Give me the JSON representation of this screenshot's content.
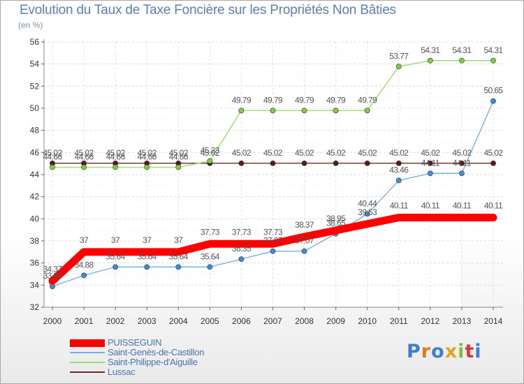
{
  "chart_data": {
    "type": "line",
    "title": "Evolution du Taux de Taxe Foncière sur les Propriétés Non Bâties",
    "ylabel": "(en %)",
    "xlabel": "",
    "categories": [
      "2000",
      "2001",
      "2002",
      "2003",
      "2004",
      "2005",
      "2006",
      "2007",
      "2008",
      "2009",
      "2010",
      "2011",
      "2012",
      "2013",
      "2014"
    ],
    "ylim": [
      32,
      56
    ],
    "yticks": [
      32,
      34,
      36,
      38,
      40,
      42,
      44,
      46,
      48,
      50,
      52,
      54,
      56
    ],
    "grid": true,
    "legend_position": "bottom-left",
    "series": [
      {
        "name": "PUISSEGUIN",
        "color": "#ff0000",
        "values": [
          34.37,
          37,
          37,
          37,
          37,
          37.73,
          37.73,
          37.73,
          38.37,
          38.95,
          39.53,
          40.11,
          40.11,
          40.11,
          40.11
        ],
        "labels": [
          "34.37",
          "37",
          "37",
          "37",
          "37",
          "37.73",
          "37.73",
          "37.73",
          "38.37",
          "38.95",
          "39.53",
          "40.11",
          "40.11",
          "40.11",
          "40.11"
        ]
      },
      {
        "name": "Saint-Genès-de-Castillon",
        "color": "#3b8dd8",
        "line_color": "#7ab0e0",
        "values": [
          33.88,
          34.88,
          35.64,
          35.64,
          35.64,
          35.64,
          36.35,
          37.07,
          37.07,
          38.65,
          40.44,
          43.46,
          44.11,
          44.11,
          50.65
        ],
        "labels": [
          "33.88",
          "34.88",
          "35.64",
          "35.64",
          "35.64",
          "35.64",
          "36.35",
          "37.07",
          "37.07",
          "38.65",
          "40.44",
          "43.46",
          "44.11",
          "44.11",
          "50.65"
        ]
      },
      {
        "name": "Saint-Philippe-d'Aiguille",
        "color": "#7fcf3a",
        "line_color": "#9fdc70",
        "values": [
          44.66,
          44.66,
          44.66,
          44.66,
          44.66,
          45.23,
          49.79,
          49.79,
          49.79,
          49.79,
          49.79,
          53.77,
          54.31,
          54.31,
          54.31
        ],
        "labels": [
          "44.66",
          "44.66",
          "44.66",
          "44.66",
          "44.66",
          "45.23",
          "49.79",
          "49.79",
          "49.79",
          "49.79",
          "49.79",
          "53.77",
          "54.31",
          "54.31",
          "54.31"
        ]
      },
      {
        "name": "Lussac",
        "color": "#5a1a1a",
        "line_color": "#6b2a2a",
        "values": [
          45.02,
          45.02,
          45.02,
          45.02,
          45.02,
          45.02,
          45.02,
          45.02,
          45.02,
          45.02,
          45.02,
          45.02,
          45.02,
          45.02,
          45.02
        ],
        "labels": [
          "45.02",
          "45.02",
          "45.02",
          "45.02",
          "45.02",
          "45.02",
          "45.02",
          "45.02",
          "45.02",
          "45.02",
          "45.02",
          "45.02",
          "45.02",
          "45.02",
          "45.02"
        ]
      }
    ]
  },
  "legend": {
    "items": [
      {
        "label": "PUISSEGUIN",
        "color": "#ff0000"
      },
      {
        "label": "Saint-Genès-de-Castillon",
        "color": "#7ab0e0"
      },
      {
        "label": "Saint-Philippe-d'Aiguille",
        "color": "#9fdc70"
      },
      {
        "label": "Lussac",
        "color": "#6b2a2a"
      }
    ]
  },
  "brand": {
    "letters": [
      "P",
      "r",
      "o",
      "x",
      "i",
      "t",
      "i"
    ],
    "colors": [
      "#3b7fd0",
      "#e07a1a",
      "#3b7fd0",
      "#e8a21a",
      "#7fbf3a",
      "#d83a3a",
      "#3b7fd0"
    ]
  }
}
